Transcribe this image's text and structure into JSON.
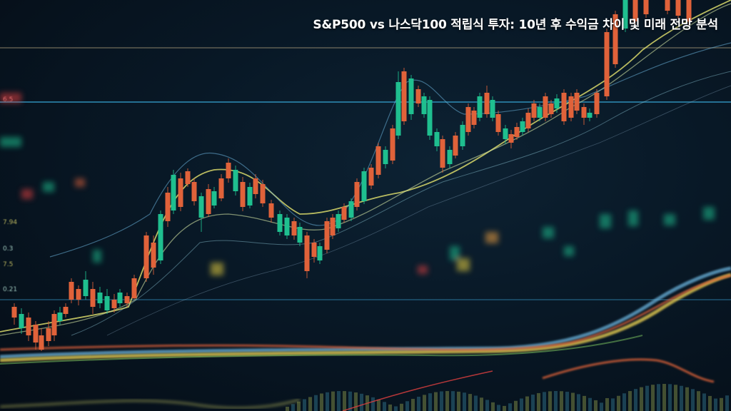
{
  "headline": "S&P500 vs 나스닥100 적립식 투자: 10년 후 수익금 차이 및 미래 전망 분석",
  "colors": {
    "background": "#07121d",
    "bullish": "#1fbf8f",
    "bearish": "#e0623a",
    "ma_yellow": "#d8d86a",
    "ma_blue": "#6ab0d8",
    "grid_line": "#2a7fa8"
  },
  "side_labels": [
    "6.5",
    "7.94",
    "0.3",
    "7.5",
    "0.21"
  ]
}
